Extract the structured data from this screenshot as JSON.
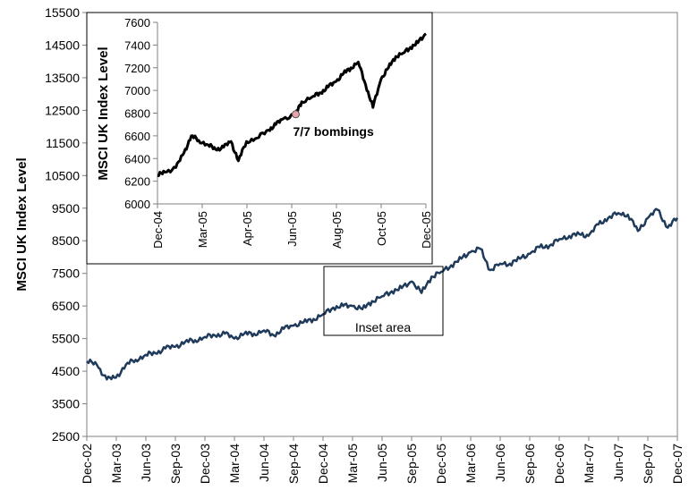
{
  "chart_data": [
    {
      "type": "line",
      "ylabel": "MSCI UK Index Level",
      "ylim": [
        2500,
        15500
      ],
      "yticks": [
        2500,
        3500,
        4500,
        5500,
        6500,
        7500,
        8500,
        9500,
        10500,
        11500,
        12500,
        13500,
        14500,
        15500
      ],
      "xlim": [
        "2002-12",
        "2007-12"
      ],
      "xtick_labels": [
        "Dec-02",
        "Mar-03",
        "Jun-03",
        "Sep-03",
        "Dec-03",
        "Mar-04",
        "Jun-04",
        "Sep-04",
        "Dec-04",
        "Mar-05",
        "Jun-05",
        "Sep-05",
        "Dec-05",
        "Mar-06",
        "Jun-06",
        "Sep-06",
        "Dec-06",
        "Mar-07",
        "Jun-07",
        "Sep-07",
        "Dec-07"
      ],
      "grid": false,
      "legend": "none",
      "line_color": "#1f3a5a",
      "series": [
        {
          "x": [
            "2002-12",
            "2003-01",
            "2003-02",
            "2003-03",
            "2003-04",
            "2003-05",
            "2003-06",
            "2003-07",
            "2003-08",
            "2003-09",
            "2003-10",
            "2003-11",
            "2003-12",
            "2004-01",
            "2004-02",
            "2004-03",
            "2004-04",
            "2004-05",
            "2004-06",
            "2004-07",
            "2004-08",
            "2004-09",
            "2004-10",
            "2004-11",
            "2004-12",
            "2005-01",
            "2005-02",
            "2005-03",
            "2005-04",
            "2005-05",
            "2005-06",
            "2005-07",
            "2005-08",
            "2005-09",
            "2005-10",
            "2005-11",
            "2005-12",
            "2006-01",
            "2006-02",
            "2006-03",
            "2006-04",
            "2006-05",
            "2006-06",
            "2006-07",
            "2006-08",
            "2006-09",
            "2006-10",
            "2006-11",
            "2006-12",
            "2007-01",
            "2007-02",
            "2007-03",
            "2007-04",
            "2007-05",
            "2007-06",
            "2007-07",
            "2007-08",
            "2007-09",
            "2007-10",
            "2007-11",
            "2007-12"
          ],
          "values": [
            4800,
            4700,
            4250,
            4300,
            4700,
            4850,
            5000,
            5050,
            5200,
            5250,
            5400,
            5450,
            5550,
            5600,
            5650,
            5500,
            5650,
            5650,
            5750,
            5600,
            5800,
            5900,
            6000,
            6100,
            6250,
            6450,
            6500,
            6500,
            6400,
            6650,
            6800,
            6950,
            7050,
            7250,
            6900,
            7400,
            7550,
            7750,
            7950,
            8150,
            8250,
            7600,
            7800,
            7800,
            7950,
            8100,
            8300,
            8350,
            8550,
            8650,
            8700,
            8650,
            9000,
            9200,
            9350,
            9300,
            8800,
            9200,
            9450,
            8900,
            9200
          ]
        }
      ],
      "annotation": "Inset area"
    },
    {
      "type": "line",
      "ylabel": "MSCI UK Index Level",
      "ylim": [
        6000,
        7600
      ],
      "yticks": [
        6000,
        6200,
        6400,
        6600,
        6800,
        7000,
        7200,
        7400,
        7600
      ],
      "xlim": [
        "2004-12-31",
        "2005-12-31"
      ],
      "xtick_labels": [
        "Dec-04",
        "Mar-05",
        "Apr-05",
        "Jun-05",
        "Aug-05",
        "Oct-05",
        "Dec-05"
      ],
      "grid": false,
      "legend": "none",
      "line_color": "#000000",
      "series": [
        {
          "x": [
            "2004-12-31",
            "2005-01-10",
            "2005-01-25",
            "2005-02-05",
            "2005-02-15",
            "2005-02-25",
            "2005-03-10",
            "2005-03-20",
            "2005-03-31",
            "2005-04-10",
            "2005-04-20",
            "2005-05-01",
            "2005-05-15",
            "2005-05-31",
            "2005-06-10",
            "2005-06-20",
            "2005-07-07",
            "2005-07-15",
            "2005-07-31",
            "2005-08-10",
            "2005-08-20",
            "2005-08-31",
            "2005-09-10",
            "2005-09-20",
            "2005-09-30",
            "2005-10-10",
            "2005-10-20",
            "2005-10-31",
            "2005-11-10",
            "2005-11-20",
            "2005-11-30",
            "2005-12-10",
            "2005-12-20",
            "2005-12-31"
          ],
          "values": [
            6250,
            6280,
            6320,
            6450,
            6600,
            6560,
            6520,
            6480,
            6500,
            6550,
            6380,
            6550,
            6580,
            6650,
            6700,
            6750,
            6790,
            6900,
            6950,
            6980,
            7030,
            7080,
            7150,
            7200,
            7250,
            7050,
            6850,
            7100,
            7200,
            7300,
            7330,
            7380,
            7420,
            7500
          ]
        }
      ],
      "annotation": "7/7 bombings",
      "annotation_x": "2005-07-07",
      "annotation_y": 6790
    }
  ]
}
